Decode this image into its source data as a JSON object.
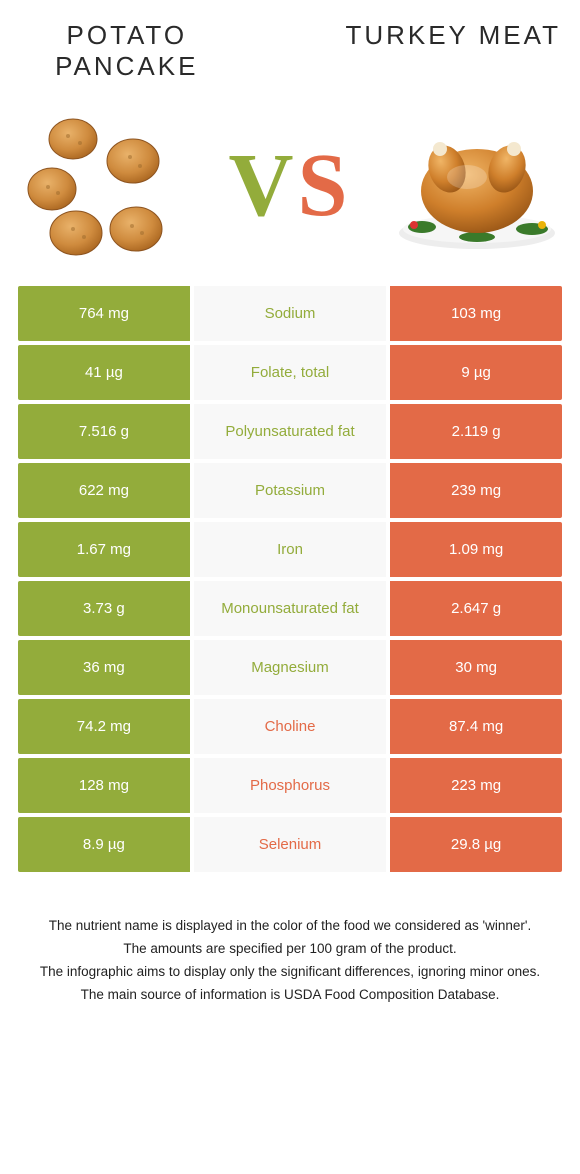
{
  "colors": {
    "left": "#93ac3b",
    "right": "#e36a47",
    "row_bg": "#f8f8f8"
  },
  "left_food": {
    "title": "POTATO PANCAKE"
  },
  "right_food": {
    "title": "TURKEY MEAT"
  },
  "vs_label": {
    "v": "V",
    "s": "S"
  },
  "rows": [
    {
      "name": "Sodium",
      "left": "764 mg",
      "right": "103 mg",
      "winner": "left"
    },
    {
      "name": "Folate, total",
      "left": "41 µg",
      "right": "9 µg",
      "winner": "left"
    },
    {
      "name": "Polyunsaturated fat",
      "left": "7.516 g",
      "right": "2.119 g",
      "winner": "left"
    },
    {
      "name": "Potassium",
      "left": "622 mg",
      "right": "239 mg",
      "winner": "left"
    },
    {
      "name": "Iron",
      "left": "1.67 mg",
      "right": "1.09 mg",
      "winner": "left"
    },
    {
      "name": "Monounsaturated fat",
      "left": "3.73 g",
      "right": "2.647 g",
      "winner": "left"
    },
    {
      "name": "Magnesium",
      "left": "36 mg",
      "right": "30 mg",
      "winner": "left"
    },
    {
      "name": "Choline",
      "left": "74.2 mg",
      "right": "87.4 mg",
      "winner": "right"
    },
    {
      "name": "Phosphorus",
      "left": "128 mg",
      "right": "223 mg",
      "winner": "right"
    },
    {
      "name": "Selenium",
      "left": "8.9 µg",
      "right": "29.8 µg",
      "winner": "right"
    }
  ],
  "notes": [
    "The nutrient name is displayed in the color of the food we considered as 'winner'.",
    "The amounts are specified per 100 gram of the product.",
    "The infographic aims to display only the significant differences, ignoring minor ones.",
    "The main source of information is USDA Food Composition Database."
  ]
}
